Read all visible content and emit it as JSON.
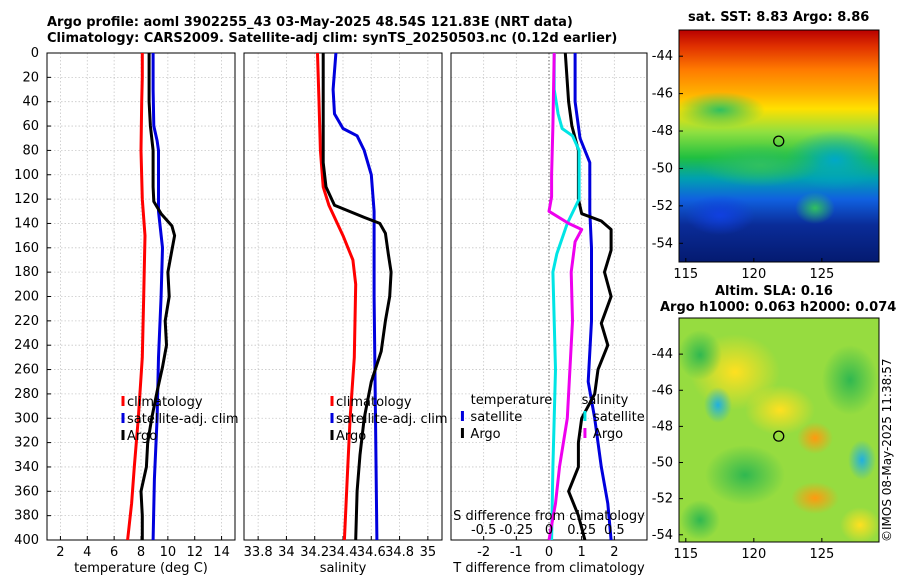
{
  "header": {
    "line1": "Argo profile: aoml 3902255_43 03-May-2025 48.54S 121.83E (NRT data)",
    "line2": "Climatology: CARS2009. Satellite-adj clim: synTS_20250503.nc (0.12d earlier)"
  },
  "maps": {
    "sst_title": "sat. SST: 8.83 Argo: 8.86",
    "sla_title1": "Altim. SLA: 0.16",
    "sla_title2": "Argo h1000: 0.063 h2000: 0.074",
    "lat_ticks": [
      -44,
      -46,
      -48,
      -50,
      -52,
      -54
    ],
    "lon_ticks": [
      115,
      120,
      125
    ],
    "argo_position": {
      "lon": 121.83,
      "lat": -48.54
    }
  },
  "side_label": "©IMOS 08-May-2025 11:38:57",
  "colors": {
    "climatology": "#ff0000",
    "satellite": "#0000dd",
    "argo": "#000000",
    "sal_sat": "#00e5e5",
    "sal_argo": "#ee00ee"
  },
  "chart_data": [
    {
      "type": "line",
      "name": "temperature",
      "xlabel": "temperature (deg C)",
      "ylabel": "",
      "xlim": [
        1,
        15
      ],
      "ylim": [
        400,
        0
      ],
      "xticks": [
        2,
        4,
        6,
        8,
        10,
        12,
        14
      ],
      "yticks": [
        0,
        20,
        40,
        60,
        80,
        100,
        120,
        140,
        160,
        180,
        200,
        220,
        240,
        260,
        280,
        300,
        320,
        340,
        360,
        380,
        400
      ],
      "legend": [
        "climatology",
        "satellite-adj. clim",
        "Argo"
      ],
      "series": [
        {
          "name": "climatology",
          "color": "#ff0000",
          "points": [
            [
              8.1,
              0
            ],
            [
              8.1,
              20
            ],
            [
              8.05,
              40
            ],
            [
              8.0,
              80
            ],
            [
              8.1,
              120
            ],
            [
              8.3,
              150
            ],
            [
              8.2,
              200
            ],
            [
              8.1,
              250
            ],
            [
              7.8,
              300
            ],
            [
              7.5,
              340
            ],
            [
              7.3,
              370
            ],
            [
              7.0,
              400
            ]
          ]
        },
        {
          "name": "satellite-adj. clim",
          "color": "#0000dd",
          "points": [
            [
              8.9,
              0
            ],
            [
              8.9,
              30
            ],
            [
              8.95,
              60
            ],
            [
              9.2,
              72
            ],
            [
              9.3,
              80
            ],
            [
              9.3,
              130
            ],
            [
              9.6,
              160
            ],
            [
              9.5,
              200
            ],
            [
              9.3,
              250
            ],
            [
              9.2,
              300
            ],
            [
              9.0,
              350
            ],
            [
              8.9,
              400
            ]
          ]
        },
        {
          "name": "Argo",
          "color": "#000000",
          "points": [
            [
              8.6,
              0
            ],
            [
              8.6,
              40
            ],
            [
              8.7,
              60
            ],
            [
              8.9,
              80
            ],
            [
              8.9,
              110
            ],
            [
              8.95,
              122
            ],
            [
              9.5,
              132
            ],
            [
              10.3,
              142
            ],
            [
              10.5,
              150
            ],
            [
              10.3,
              162
            ],
            [
              10.0,
              180
            ],
            [
              10.1,
              200
            ],
            [
              9.8,
              220
            ],
            [
              9.9,
              240
            ],
            [
              9.6,
              258
            ],
            [
              9.2,
              278
            ],
            [
              8.8,
              300
            ],
            [
              8.5,
              320
            ],
            [
              8.4,
              340
            ],
            [
              8.0,
              360
            ],
            [
              8.1,
              380
            ],
            [
              8.1,
              400
            ]
          ]
        }
      ]
    },
    {
      "type": "line",
      "name": "salinity",
      "xlabel": "salinity",
      "xlim": [
        33.7,
        35.1
      ],
      "ylim": [
        400,
        0
      ],
      "xticks": [
        33.8,
        34,
        34.2,
        34.4,
        34.6,
        34.8,
        35
      ],
      "xticklabels": [
        "33.8",
        "34",
        "34.2",
        "34.4",
        "34.6",
        "34.8",
        "35"
      ],
      "legend": [
        "climatology",
        "satellite-adj. clim",
        "Argo"
      ],
      "series": [
        {
          "name": "climatology",
          "color": "#ff0000",
          "points": [
            [
              34.22,
              0
            ],
            [
              34.23,
              40
            ],
            [
              34.24,
              80
            ],
            [
              34.26,
              110
            ],
            [
              34.3,
              125
            ],
            [
              34.4,
              150
            ],
            [
              34.47,
              170
            ],
            [
              34.49,
              190
            ],
            [
              34.48,
              250
            ],
            [
              34.45,
              300
            ],
            [
              34.43,
              350
            ],
            [
              34.41,
              400
            ]
          ]
        },
        {
          "name": "satellite-adj. clim",
          "color": "#0000dd",
          "points": [
            [
              34.35,
              0
            ],
            [
              34.33,
              30
            ],
            [
              34.34,
              50
            ],
            [
              34.4,
              62
            ],
            [
              34.5,
              68
            ],
            [
              34.55,
              80
            ],
            [
              34.6,
              100
            ],
            [
              34.62,
              130
            ],
            [
              34.62,
              200
            ],
            [
              34.63,
              300
            ],
            [
              34.64,
              400
            ]
          ]
        },
        {
          "name": "Argo",
          "color": "#000000",
          "points": [
            [
              34.26,
              0
            ],
            [
              34.26,
              90
            ],
            [
              34.28,
              110
            ],
            [
              34.34,
              125
            ],
            [
              34.55,
              135
            ],
            [
              34.66,
              140
            ],
            [
              34.7,
              148
            ],
            [
              34.72,
              165
            ],
            [
              34.74,
              180
            ],
            [
              34.73,
              200
            ],
            [
              34.7,
              220
            ],
            [
              34.67,
              245
            ],
            [
              34.6,
              270
            ],
            [
              34.55,
              300
            ],
            [
              34.52,
              330
            ],
            [
              34.5,
              360
            ],
            [
              34.49,
              400
            ]
          ]
        }
      ]
    },
    {
      "type": "line",
      "name": "difference",
      "xlabel": "T difference from climatology",
      "x2label": "S difference from climatology",
      "xlim": [
        -3,
        3
      ],
      "ylim": [
        400,
        0
      ],
      "xticks": [
        -2,
        -1,
        0,
        1,
        2
      ],
      "x2ticks": [
        -0.5,
        -0.25,
        0,
        0.25,
        0.5
      ],
      "x2ticklabels": [
        "-0.5",
        "-0.25",
        "0",
        "0.25",
        "0.5"
      ],
      "legend_titles": [
        "temperature",
        "salinity"
      ],
      "legend_t": [
        "satellite",
        "Argo"
      ],
      "legend_s": [
        "satellite",
        "Argo"
      ],
      "series": [
        {
          "name": "T satellite",
          "color": "#0000dd",
          "points": [
            [
              0.8,
              0
            ],
            [
              0.8,
              40
            ],
            [
              0.95,
              70
            ],
            [
              1.25,
              90
            ],
            [
              1.25,
              130
            ],
            [
              1.3,
              160
            ],
            [
              1.3,
              220
            ],
            [
              1.2,
              270
            ],
            [
              1.4,
              300
            ],
            [
              1.6,
              340
            ],
            [
              1.8,
              370
            ],
            [
              1.9,
              400
            ]
          ]
        },
        {
          "name": "T Argo",
          "color": "#000000",
          "points": [
            [
              0.5,
              0
            ],
            [
              0.6,
              40
            ],
            [
              0.7,
              60
            ],
            [
              0.9,
              80
            ],
            [
              0.9,
              120
            ],
            [
              1.0,
              132
            ],
            [
              1.6,
              138
            ],
            [
              1.9,
              145
            ],
            [
              1.9,
              162
            ],
            [
              1.7,
              180
            ],
            [
              1.9,
              200
            ],
            [
              1.6,
              222
            ],
            [
              1.8,
              240
            ],
            [
              1.5,
              260
            ],
            [
              1.4,
              280
            ],
            [
              1.0,
              300
            ],
            [
              0.9,
              320
            ],
            [
              0.9,
              340
            ],
            [
              0.6,
              360
            ],
            [
              0.9,
              380
            ],
            [
              1.1,
              400
            ]
          ]
        },
        {
          "name": "S satellite",
          "color": "#00e5e5",
          "points": [
            [
              0.04,
              0
            ],
            [
              0.04,
              30
            ],
            [
              0.07,
              50
            ],
            [
              0.1,
              62
            ],
            [
              0.18,
              68
            ],
            [
              0.23,
              80
            ],
            [
              0.23,
              120
            ],
            [
              0.14,
              140
            ],
            [
              0.06,
              165
            ],
            [
              0.03,
              180
            ],
            [
              0.04,
              220
            ],
            [
              0.05,
              260
            ],
            [
              0.04,
              300
            ],
            [
              0.03,
              340
            ],
            [
              0.02,
              400
            ]
          ]
        },
        {
          "name": "S Argo",
          "color": "#ee00ee",
          "points": [
            [
              0.04,
              0
            ],
            [
              0.03,
              60
            ],
            [
              0.02,
              100
            ],
            [
              0.02,
              118
            ],
            [
              0.0,
              130
            ],
            [
              0.15,
              140
            ],
            [
              0.25,
              145
            ],
            [
              0.2,
              155
            ],
            [
              0.17,
              180
            ],
            [
              0.18,
              220
            ],
            [
              0.16,
              260
            ],
            [
              0.14,
              300
            ],
            [
              0.08,
              340
            ],
            [
              0.05,
              370
            ],
            [
              0.0,
              400
            ]
          ]
        }
      ]
    }
  ]
}
